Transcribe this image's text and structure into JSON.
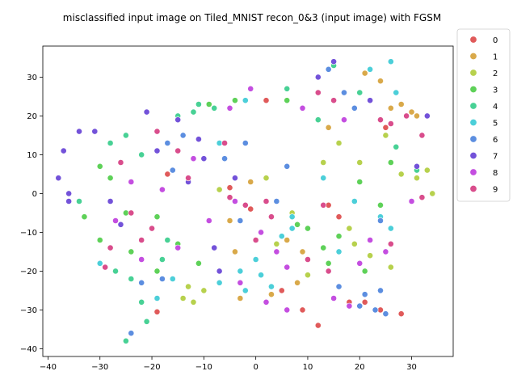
{
  "chart_data": {
    "type": "scatter",
    "title": "misclassified input image on Tiled_MNIST recon_0&3 (input image) with FGSM",
    "xlabel": "",
    "ylabel": "",
    "xlim": [
      -41,
      38
    ],
    "ylim": [
      -42,
      38
    ],
    "xticks": [
      -40,
      -30,
      -20,
      -10,
      0,
      10,
      20,
      30
    ],
    "yticks": [
      -40,
      -30,
      -20,
      -10,
      0,
      10,
      20,
      30
    ],
    "grid": false,
    "legend_position": "outside-right",
    "series": [
      {
        "name": "0",
        "color": "#e05a5a",
        "points": [
          [
            -19,
            -30.5
          ],
          [
            -5,
            1.5
          ],
          [
            12,
            -34
          ],
          [
            16,
            -6
          ],
          [
            18,
            -28
          ],
          [
            21,
            -28
          ],
          [
            24,
            -30
          ],
          [
            28,
            -31
          ],
          [
            -17,
            5
          ],
          [
            25,
            17
          ],
          [
            14,
            -3
          ],
          [
            2,
            24
          ],
          [
            5,
            -25
          ],
          [
            -1,
            -4
          ],
          [
            9,
            -30
          ]
        ]
      },
      {
        "name": "1",
        "color": "#d9a94a",
        "points": [
          [
            21,
            31
          ],
          [
            24,
            29
          ],
          [
            30,
            21
          ],
          [
            31,
            20
          ],
          [
            -5,
            -7
          ],
          [
            -4,
            -15
          ],
          [
            3,
            -26
          ],
          [
            9,
            -15
          ],
          [
            14,
            17
          ],
          [
            28,
            23
          ],
          [
            6,
            -12
          ],
          [
            1,
            -10
          ],
          [
            -3,
            -27
          ],
          [
            26,
            22
          ],
          [
            -1,
            3
          ],
          [
            8,
            -23
          ]
        ]
      },
      {
        "name": "2",
        "color": "#b7d14d",
        "points": [
          [
            -14,
            -27
          ],
          [
            -13,
            -24
          ],
          [
            -12,
            -28
          ],
          [
            19,
            -13
          ],
          [
            22,
            -16
          ],
          [
            18,
            -9
          ],
          [
            26,
            -19
          ],
          [
            28,
            5
          ],
          [
            31,
            4
          ],
          [
            34,
            0
          ],
          [
            33,
            6
          ],
          [
            4,
            -13
          ],
          [
            13,
            8
          ],
          [
            20,
            8
          ],
          [
            7,
            -5
          ],
          [
            -7,
            1
          ],
          [
            10,
            -21
          ],
          [
            16,
            13
          ],
          [
            2,
            4
          ],
          [
            -10,
            -25
          ],
          [
            25,
            15
          ]
        ]
      },
      {
        "name": "3",
        "color": "#5ed158",
        "points": [
          [
            -30,
            7
          ],
          [
            -28,
            4
          ],
          [
            -33,
            -6
          ],
          [
            -30,
            -12
          ],
          [
            -24,
            -15
          ],
          [
            -19,
            -20
          ],
          [
            -15,
            -13
          ],
          [
            -11,
            -18
          ],
          [
            10,
            -9
          ],
          [
            14,
            -18
          ],
          [
            16,
            -11
          ],
          [
            20,
            3
          ],
          [
            26,
            8
          ],
          [
            -4,
            24
          ],
          [
            6,
            24
          ],
          [
            -9,
            23
          ],
          [
            -25,
            -5
          ],
          [
            -19,
            -6
          ],
          [
            13,
            -14
          ],
          [
            24,
            -3
          ],
          [
            21,
            -20
          ],
          [
            8,
            -8
          ]
        ]
      },
      {
        "name": "4",
        "color": "#48d195",
        "points": [
          [
            -28,
            13
          ],
          [
            -25,
            15
          ],
          [
            -22,
            10
          ],
          [
            -34,
            -2
          ],
          [
            -27,
            -20
          ],
          [
            -22,
            -28
          ],
          [
            -21,
            -33
          ],
          [
            -25,
            -38
          ],
          [
            -18,
            -17
          ],
          [
            -8,
            22
          ],
          [
            -11,
            23
          ],
          [
            12,
            19
          ],
          [
            15,
            33
          ],
          [
            20,
            26
          ],
          [
            27,
            12
          ],
          [
            31,
            6
          ],
          [
            -15,
            20
          ],
          [
            -12,
            21
          ],
          [
            -24,
            -22
          ],
          [
            -17,
            -12
          ],
          [
            6,
            27
          ]
        ]
      },
      {
        "name": "5",
        "color": "#4ccfd9",
        "points": [
          [
            -30,
            -18
          ],
          [
            -19,
            -27
          ],
          [
            -7,
            -23
          ],
          [
            1,
            -21
          ],
          [
            -2,
            -25
          ],
          [
            3,
            -24
          ],
          [
            7,
            -6
          ],
          [
            7,
            -9
          ],
          [
            19,
            -2
          ],
          [
            16,
            -15
          ],
          [
            26,
            -9
          ],
          [
            24,
            -6
          ],
          [
            22,
            32
          ],
          [
            26,
            34
          ],
          [
            -7,
            13
          ],
          [
            -2,
            24
          ],
          [
            0,
            -17
          ],
          [
            5,
            -11
          ],
          [
            13,
            4
          ],
          [
            27,
            26
          ],
          [
            -3,
            -20
          ],
          [
            -16,
            -22
          ]
        ]
      },
      {
        "name": "6",
        "color": "#5c8ee0",
        "points": [
          [
            -22,
            -23
          ],
          [
            -18,
            -22
          ],
          [
            -24,
            -36
          ],
          [
            -16,
            6
          ],
          [
            -17,
            13
          ],
          [
            -14,
            15
          ],
          [
            14,
            32
          ],
          [
            17,
            26
          ],
          [
            19,
            22
          ],
          [
            21,
            -26
          ],
          [
            24,
            -25
          ],
          [
            23,
            -30
          ],
          [
            25,
            -31
          ],
          [
            16,
            -24
          ],
          [
            4,
            -2
          ],
          [
            6,
            7
          ],
          [
            -3,
            -7
          ],
          [
            -6,
            9
          ],
          [
            -2,
            13
          ],
          [
            24,
            -7
          ],
          [
            20,
            -29
          ]
        ]
      },
      {
        "name": "7",
        "color": "#7352d9",
        "points": [
          [
            -37,
            11
          ],
          [
            -38,
            4
          ],
          [
            -36,
            0
          ],
          [
            -34,
            16
          ],
          [
            -31,
            16
          ],
          [
            -26,
            -8
          ],
          [
            -21,
            21
          ],
          [
            -19,
            11
          ],
          [
            -15,
            19
          ],
          [
            -11,
            14
          ],
          [
            -10,
            9
          ],
          [
            -8,
            -14
          ],
          [
            -7,
            -20
          ],
          [
            -13,
            3
          ],
          [
            12,
            30
          ],
          [
            15,
            34
          ],
          [
            22,
            24
          ],
          [
            31,
            7
          ],
          [
            33,
            20
          ],
          [
            -36,
            -2
          ],
          [
            -28,
            -2
          ],
          [
            -4,
            4
          ]
        ]
      },
      {
        "name": "8",
        "color": "#c44ee0",
        "points": [
          [
            -24,
            3
          ],
          [
            -27,
            -7
          ],
          [
            -22,
            -17
          ],
          [
            -18,
            1
          ],
          [
            -15,
            -14
          ],
          [
            -12,
            9
          ],
          [
            -9,
            -7
          ],
          [
            -4,
            -2
          ],
          [
            1,
            -10
          ],
          [
            4,
            -15
          ],
          [
            6,
            -19
          ],
          [
            9,
            22
          ],
          [
            17,
            19
          ],
          [
            20,
            -18
          ],
          [
            22,
            -12
          ],
          [
            25,
            -15
          ],
          [
            30,
            -2
          ],
          [
            2,
            -28
          ],
          [
            -3,
            -23
          ],
          [
            15,
            -27
          ],
          [
            18,
            -29
          ],
          [
            -5,
            22
          ],
          [
            -1,
            27
          ],
          [
            6,
            -30
          ]
        ]
      },
      {
        "name": "9",
        "color": "#d94d8c",
        "points": [
          [
            -26,
            8
          ],
          [
            -24,
            -5
          ],
          [
            -28,
            -14
          ],
          [
            -22,
            -12
          ],
          [
            -19,
            16
          ],
          [
            -15,
            11
          ],
          [
            -13,
            4
          ],
          [
            -6,
            13
          ],
          [
            -5,
            -1
          ],
          [
            -2,
            -3
          ],
          [
            0,
            -12
          ],
          [
            3,
            -6
          ],
          [
            10,
            -17
          ],
          [
            14,
            -20
          ],
          [
            12,
            26
          ],
          [
            15,
            24
          ],
          [
            26,
            18
          ],
          [
            29,
            20
          ],
          [
            32,
            15
          ],
          [
            32,
            -1
          ],
          [
            26,
            -13
          ],
          [
            -29,
            -19
          ],
          [
            -20,
            -9
          ],
          [
            2,
            -2
          ],
          [
            24,
            19
          ],
          [
            13,
            -3
          ]
        ]
      }
    ]
  }
}
